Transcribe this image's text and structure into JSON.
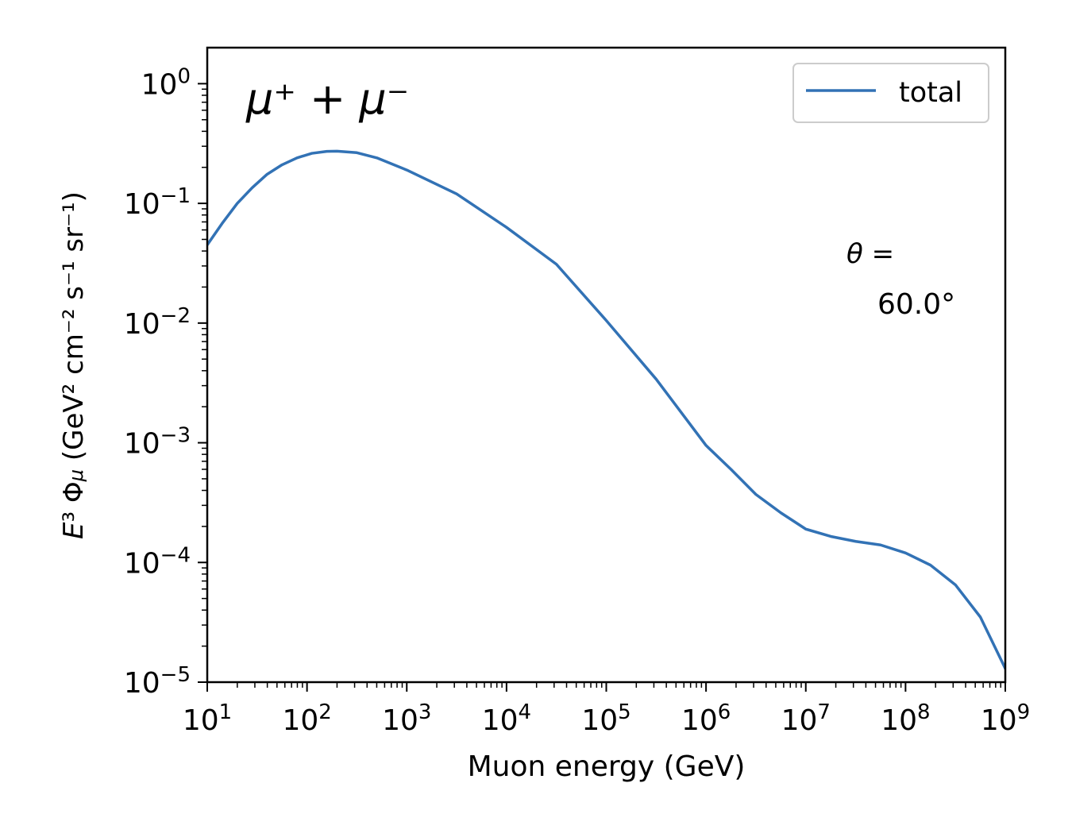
{
  "chart_data": {
    "type": "line",
    "title": "",
    "panel_label": "μ⁺ + μ⁻",
    "xlabel": "Muon energy (GeV)",
    "ylabel": "E³ Φμ (GeV² cm⁻² s⁻¹ sr⁻¹)",
    "xscale": "log",
    "yscale": "log",
    "xlim": [
      10,
      1000000000
    ],
    "ylim": [
      1e-05,
      2
    ],
    "grid": false,
    "legend_position": "top-right",
    "x_ticks": [
      10,
      100,
      1000,
      10000,
      100000,
      1000000,
      10000000,
      100000000,
      1000000000
    ],
    "x_tick_labels": [
      {
        "base": "10",
        "exp": "1"
      },
      {
        "base": "10",
        "exp": "2"
      },
      {
        "base": "10",
        "exp": "3"
      },
      {
        "base": "10",
        "exp": "4"
      },
      {
        "base": "10",
        "exp": "5"
      },
      {
        "base": "10",
        "exp": "6"
      },
      {
        "base": "10",
        "exp": "7"
      },
      {
        "base": "10",
        "exp": "8"
      },
      {
        "base": "10",
        "exp": "9"
      }
    ],
    "y_ticks": [
      1e-05,
      0.0001,
      0.001,
      0.01,
      0.1,
      1
    ],
    "y_tick_labels": [
      {
        "base": "10",
        "exp": "−5"
      },
      {
        "base": "10",
        "exp": "−4"
      },
      {
        "base": "10",
        "exp": "−3"
      },
      {
        "base": "10",
        "exp": "−2"
      },
      {
        "base": "10",
        "exp": "−1"
      },
      {
        "base": "10",
        "exp": "0"
      }
    ],
    "annotation": {
      "label": "θ =",
      "value": "60.0°",
      "value_color": "#1f6bb0"
    },
    "series": [
      {
        "name": "total",
        "color": "#3272b5",
        "points": [
          [
            10,
            0.045
          ],
          [
            14.1,
            0.068
          ],
          [
            20,
            0.1
          ],
          [
            28.2,
            0.135
          ],
          [
            39.8,
            0.175
          ],
          [
            56.2,
            0.21
          ],
          [
            79.4,
            0.24
          ],
          [
            112,
            0.262
          ],
          [
            158,
            0.272
          ],
          [
            200,
            0.273
          ],
          [
            316,
            0.265
          ],
          [
            501,
            0.24
          ],
          [
            1000,
            0.19
          ],
          [
            3162,
            0.12
          ],
          [
            10000,
            0.063
          ],
          [
            31623,
            0.031
          ],
          [
            100000,
            0.0105
          ],
          [
            316228,
            0.0034
          ],
          [
            1000000,
            0.00095
          ],
          [
            1778279,
            0.0006
          ],
          [
            3162278,
            0.00037
          ],
          [
            5623413,
            0.00026
          ],
          [
            10000000,
            0.00019
          ],
          [
            17782794,
            0.000165
          ],
          [
            31622777,
            0.00015
          ],
          [
            56234133,
            0.00014
          ],
          [
            100000000,
            0.00012
          ],
          [
            177827941,
            9.5e-05
          ],
          [
            316227766,
            6.5e-05
          ],
          [
            562341325,
            3.5e-05
          ],
          [
            1000000000,
            1.3e-05
          ]
        ]
      }
    ]
  }
}
